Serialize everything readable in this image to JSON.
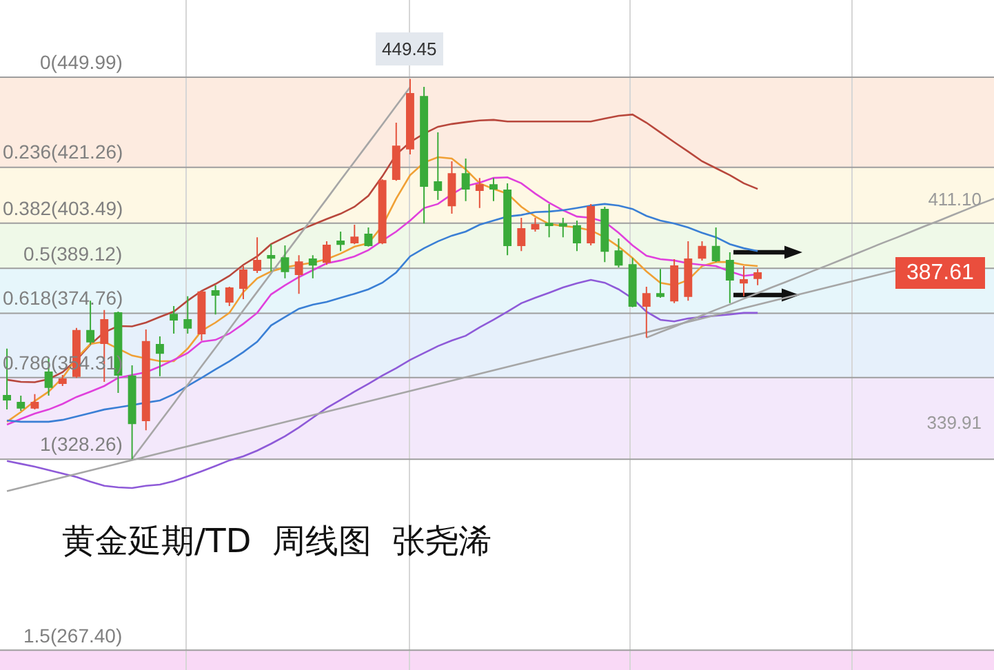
{
  "chart_data": {
    "type": "candlestick",
    "title": "黄金延期/TD  周线图  张尧浠",
    "categories": [
      null,
      null,
      null,
      null,
      null,
      null,
      null,
      null,
      null,
      null,
      null,
      null,
      null,
      null,
      null,
      null,
      null,
      null,
      null,
      null,
      null,
      null,
      null,
      null,
      null,
      null,
      null,
      null,
      null,
      null,
      null,
      null,
      null,
      null,
      null,
      null,
      null,
      null,
      null,
      null,
      null,
      null,
      null,
      null,
      null,
      null,
      null,
      null,
      null,
      null,
      null,
      null,
      null,
      null,
      null,
      null,
      null,
      null,
      null,
      null,
      null,
      null,
      null,
      null,
      null,
      null,
      null,
      null,
      null,
      null,
      null,
      null
    ],
    "ylim": [
      261.1,
      474.6
    ],
    "yticks": [
      {
        "value": 411.1,
        "label": "411.10"
      },
      339.91
    ],
    "tick_labels": "y",
    "grid": "x",
    "ohlc": [
      [
        348.5,
        363.5,
        344.1,
        347.2
      ],
      [
        346.3,
        348.5,
        343.7,
        344.6
      ],
      [
        344.6,
        349.0,
        344.1,
        346.3
      ],
      [
        356.0,
        360.4,
        348.5,
        351.2
      ],
      [
        352.5,
        355.1,
        351.6,
        353.8
      ],
      [
        354.7,
        370.1,
        354.2,
        369.2
      ],
      [
        369.2,
        378.8,
        364.8,
        365.7
      ],
      [
        365.2,
        375.8,
        352.9,
        372.7
      ],
      [
        374.9,
        375.3,
        349.4,
        355.1
      ],
      [
        354.7,
        358.2,
        328.26,
        339.7
      ],
      [
        340.6,
        369.6,
        337.5,
        365.7
      ],
      [
        364.8,
        367.4,
        354.7,
        362.1
      ],
      [
        374.4,
        377.1,
        368.3,
        372.7
      ],
      [
        372.7,
        380.2,
        368.3,
        370.1
      ],
      [
        368.3,
        381.9,
        366.1,
        381.5
      ],
      [
        381.9,
        383.7,
        374.4,
        380.6
      ],
      [
        378.4,
        383.2,
        377.1,
        382.8
      ],
      [
        382.8,
        389.8,
        379.3,
        388.5
      ],
      [
        388.5,
        399.0,
        387.6,
        391.6
      ],
      [
        393.1,
        396.8,
        388.1,
        392.4
      ],
      [
        392.4,
        396.4,
        385.9,
        388.1
      ],
      [
        387.2,
        393.3,
        381.0,
        391.1
      ],
      [
        392.0,
        393.3,
        385.9,
        390.2
      ],
      [
        391.1,
        397.7,
        390.2,
        396.4
      ],
      [
        397.7,
        400.8,
        394.6,
        396.8
      ],
      [
        397.3,
        403.0,
        396.8,
        399.0
      ],
      [
        399.9,
        402.1,
        396.0,
        396.4
      ],
      [
        397.3,
        417.5,
        396.8,
        417.0
      ],
      [
        417.5,
        435.5,
        417.0,
        428.0
      ],
      [
        427.2,
        449.45,
        425.4,
        444.7
      ],
      [
        443.8,
        446.9,
        403.4,
        415.3
      ],
      [
        416.6,
        432.4,
        410.9,
        414.0
      ],
      [
        409.1,
        423.2,
        406.5,
        419.2
      ],
      [
        419.2,
        424.1,
        410.5,
        414.4
      ],
      [
        414.0,
        417.9,
        408.3,
        415.7
      ],
      [
        415.7,
        417.9,
        410.5,
        414.4
      ],
      [
        414.0,
        416.2,
        393.3,
        396.4
      ],
      [
        396.4,
        405.2,
        394.6,
        401.7
      ],
      [
        401.7,
        405.2,
        400.8,
        403.0
      ],
      [
        403.4,
        409.6,
        399.0,
        402.8
      ],
      [
        403.2,
        405.2,
        399.0,
        402.6
      ],
      [
        402.6,
        404.3,
        394.6,
        397.3
      ],
      [
        397.3,
        409.6,
        396.4,
        408.7
      ],
      [
        407.8,
        408.7,
        391.1,
        394.6
      ],
      [
        394.6,
        398.6,
        389.4,
        390.2
      ],
      [
        390.2,
        392.4,
        376.7,
        377.1
      ],
      [
        377.1,
        383.2,
        367.0,
        381.0
      ],
      [
        381.0,
        388.9,
        379.7,
        380.2
      ],
      [
        378.8,
        392.0,
        378.0,
        389.8
      ],
      [
        380.2,
        397.7,
        378.8,
        392.0
      ],
      [
        392.4,
        397.7,
        391.6,
        396.0
      ],
      [
        396.0,
        402.1,
        391.1,
        391.6
      ],
      [
        391.6,
        394.2,
        378.0,
        385.4
      ],
      [
        384.5,
        389.8,
        380.2,
        385.4
      ],
      [
        385.9,
        388.9,
        383.7,
        387.61
      ],
      null,
      null,
      null,
      null,
      null,
      null,
      null,
      null,
      null,
      null,
      null,
      null,
      null,
      null,
      null,
      null,
      null
    ],
    "colors": [
      "#3aab3a",
      "#3aab3a",
      "#e5533d",
      "#3aab3a",
      "#e5533d",
      "#e5533d",
      "#3aab3a",
      "#e5533d",
      "#3aab3a",
      "#3aab3a",
      "#e5533d",
      "#3aab3a",
      "#3aab3a",
      "#3aab3a",
      "#e5533d",
      "#3aab3a",
      "#e5533d",
      "#e5533d",
      "#e5533d",
      "#3aab3a",
      "#3aab3a",
      "#e5533d",
      "#3aab3a",
      "#e5533d",
      "#3aab3a",
      "#e5533d",
      "#3aab3a",
      "#e5533d",
      "#e5533d",
      "#e5533d",
      "#3aab3a",
      "#3aab3a",
      "#e5533d",
      "#3aab3a",
      "#e5533d",
      "#3aab3a",
      "#3aab3a",
      "#e5533d",
      "#e5533d",
      "#3aab3a",
      "#3aab3a",
      "#3aab3a",
      "#e5533d",
      "#3aab3a",
      "#3aab3a",
      "#3aab3a",
      "#e5533d",
      "#3aab3a",
      "#e5533d",
      "#e5533d",
      "#e5533d",
      "#3aab3a",
      "#3aab3a",
      "#e5533d",
      "#e5533d",
      null,
      null,
      null,
      null,
      null,
      null,
      null,
      null,
      null,
      null,
      null,
      null,
      null,
      null,
      null,
      null,
      null
    ],
    "series": [
      {
        "type": "line",
        "color": "#b8473c",
        "values": [
          353.6,
          352.9,
          352.8,
          353.8,
          356.0,
          359.9,
          364.8,
          368.7,
          370.7,
          370.6,
          371.8,
          373.6,
          375.3,
          378.8,
          381.9,
          384.1,
          386.7,
          390.2,
          392.9,
          396.8,
          399.0,
          401.2,
          403.0,
          404.8,
          406.5,
          408.7,
          412.2,
          418.4,
          425.4,
          429.3,
          432.0,
          434.2,
          435.1,
          435.7,
          436.2,
          436.4,
          435.9,
          435.9,
          435.9,
          435.9,
          435.9,
          435.9,
          435.9,
          436.8,
          437.7,
          438.1,
          435.5,
          432.4,
          429.3,
          426.3,
          423.2,
          421.0,
          418.8,
          416.2,
          414.4,
          null,
          null,
          null,
          null,
          null,
          null,
          null,
          null,
          null,
          null,
          null,
          null,
          null,
          null,
          null,
          null,
          null
        ]
      },
      {
        "type": "line",
        "color": "#f0a035",
        "values": [
          340.2,
          343.3,
          346.8,
          349.8,
          354.2,
          360.4,
          365.0,
          365.7,
          363.5,
          361.3,
          360.4,
          359.5,
          359.5,
          363.5,
          369.2,
          371.8,
          374.9,
          381.5,
          385.9,
          388.1,
          389.4,
          390.2,
          390.9,
          392.0,
          393.8,
          396.0,
          397.1,
          402.6,
          411.3,
          418.8,
          422.8,
          424.5,
          424.1,
          420.6,
          416.2,
          414.4,
          412.9,
          408.7,
          405.6,
          403.2,
          402.6,
          402.1,
          401.2,
          399.0,
          396.0,
          392.4,
          388.1,
          384.5,
          383.7,
          385.4,
          389.8,
          391.1,
          391.1,
          390.2,
          389.8,
          null,
          null,
          null,
          null,
          null,
          null,
          null,
          null,
          null,
          null,
          null,
          null,
          null,
          null,
          null,
          null,
          null
        ]
      },
      {
        "type": "line",
        "color": "#e040dc",
        "values": [
          339.3,
          341.1,
          342.8,
          344.1,
          345.9,
          348.1,
          349.8,
          351.6,
          354.2,
          355.1,
          356.0,
          357.8,
          359.9,
          362.1,
          365.7,
          366.3,
          368.3,
          371.4,
          374.9,
          380.8,
          383.7,
          386.3,
          388.5,
          390.7,
          391.6,
          392.9,
          394.9,
          397.9,
          400.8,
          404.3,
          408.3,
          409.6,
          412.7,
          415.3,
          416.4,
          417.9,
          418.1,
          416.2,
          412.9,
          410.0,
          407.6,
          405.6,
          405.2,
          403.9,
          400.4,
          396.4,
          393.1,
          392.0,
          391.6,
          390.7,
          390.2,
          389.8,
          388.1,
          386.7,
          387.2,
          null,
          null,
          null,
          null,
          null,
          null,
          null,
          null,
          null,
          null,
          null,
          null,
          null,
          null,
          null,
          null,
          null
        ]
      },
      {
        "type": "line",
        "color": "#3a7fd5",
        "values": [
          340.6,
          340.2,
          340.2,
          340.2,
          340.8,
          341.9,
          343.0,
          344.1,
          344.8,
          345.5,
          346.3,
          347.0,
          349.0,
          351.6,
          354.2,
          356.9,
          359.5,
          362.4,
          365.7,
          370.9,
          373.6,
          376.2,
          377.5,
          378.4,
          379.7,
          381.0,
          382.4,
          384.5,
          387.8,
          392.9,
          395.5,
          397.7,
          399.5,
          400.8,
          403.0,
          404.3,
          405.6,
          406.1,
          407.0,
          407.2,
          407.6,
          408.3,
          409.1,
          409.6,
          409.1,
          408.0,
          405.8,
          404.3,
          403.4,
          402.1,
          400.4,
          399.0,
          396.8,
          395.5,
          394.6,
          null,
          null,
          null,
          null,
          null,
          null,
          null,
          null,
          null,
          null,
          null,
          null,
          null,
          null,
          null,
          null,
          null
        ]
      },
      {
        "type": "line",
        "color": "#8e5ad8",
        "values": [
          327.7,
          326.8,
          325.9,
          324.8,
          323.7,
          322.6,
          321.1,
          319.8,
          319.3,
          319.1,
          319.8,
          320.2,
          321.3,
          322.8,
          324.4,
          326.1,
          327.9,
          329.2,
          331.0,
          333.2,
          335.6,
          338.4,
          341.5,
          344.6,
          347.2,
          349.8,
          352.3,
          354.9,
          357.3,
          359.9,
          362.1,
          364.3,
          366.1,
          367.6,
          370.3,
          372.7,
          375.3,
          378.0,
          379.7,
          381.3,
          383.0,
          384.3,
          385.4,
          384.5,
          382.4,
          379.5,
          375.3,
          372.7,
          372.2,
          373.1,
          373.6,
          374.0,
          374.4,
          374.9,
          374.9,
          null,
          null,
          null,
          null,
          null,
          null,
          null,
          null,
          null,
          null,
          null,
          null,
          null,
          null,
          null,
          null,
          null
        ]
      },
      {
        "type": "line",
        "color": "#a6a6a6",
        "values": [
          null,
          null,
          null,
          null,
          null,
          null,
          null,
          null,
          null,
          328.3,
          334.2,
          340.1,
          346.0,
          352.0,
          357.9,
          363.8,
          369.7,
          375.7,
          381.6,
          387.5,
          393.5,
          399.4,
          405.3,
          411.2,
          417.2,
          423.1,
          429.0,
          434.9,
          440.9,
          446.8,
          null,
          null,
          null,
          null,
          null,
          null,
          null,
          null,
          null,
          null,
          null,
          null,
          null,
          null,
          null,
          null,
          null,
          null,
          null,
          null,
          null,
          null,
          null,
          null,
          null,
          null,
          null,
          null,
          null,
          null,
          null,
          null,
          null,
          null,
          null,
          null,
          null,
          null,
          null,
          null,
          null,
          null
        ]
      },
      {
        "type": "line",
        "color": "#a6a6a6",
        "values": [
          318.1,
          319.2,
          320.3,
          321.4,
          322.5,
          323.6,
          324.7,
          325.8,
          326.9,
          328.0,
          329.1,
          330.2,
          331.3,
          332.4,
          333.5,
          334.6,
          335.7,
          336.8,
          337.9,
          339.0,
          340.1,
          341.2,
          342.3,
          343.4,
          344.5,
          345.6,
          346.7,
          347.8,
          348.9,
          350.0,
          351.1,
          352.2,
          353.3,
          354.4,
          355.5,
          356.6,
          357.7,
          358.8,
          359.9,
          361.0,
          362.1,
          363.2,
          364.3,
          365.4,
          366.5,
          367.6,
          368.7,
          369.8,
          370.9,
          372.0,
          373.1,
          374.2,
          375.3,
          376.4,
          377.5,
          378.6,
          379.7,
          380.8,
          381.9,
          383.0,
          384.1,
          385.2,
          386.3,
          387.4,
          388.5,
          null,
          null,
          null,
          null,
          null,
          null,
          null
        ]
      },
      {
        "type": "line",
        "color": "#a6a6a6",
        "values": [
          null,
          null,
          null,
          null,
          null,
          null,
          null,
          null,
          null,
          null,
          null,
          null,
          null,
          null,
          null,
          null,
          null,
          null,
          null,
          null,
          null,
          null,
          null,
          null,
          null,
          null,
          null,
          null,
          null,
          null,
          null,
          null,
          null,
          null,
          null,
          null,
          null,
          null,
          null,
          null,
          null,
          null,
          null,
          null,
          null,
          null,
          367.0,
          368.8,
          370.5,
          372.3,
          374.1,
          375.9,
          377.6,
          379.4,
          381.2,
          383.0,
          384.7,
          386.5,
          388.3,
          390.0,
          391.8,
          393.6,
          395.4,
          397.2,
          398.9,
          400.7,
          402.5,
          404.2,
          406.0,
          407.8,
          409.6,
          411.3
        ]
      }
    ],
    "ref_lines": [
      {
        "axis": "y",
        "value": 449.99,
        "label": "0(449.99)"
      },
      {
        "axis": "y",
        "value": 421.26,
        "label": "0.236(421.26)"
      },
      {
        "axis": "y",
        "value": 403.49,
        "label": "0.382(403.49)"
      },
      {
        "axis": "y",
        "value": 389.12,
        "label": "0.5(389.12)"
      },
      {
        "axis": "y",
        "value": 374.76,
        "label": "0.618(374.76)"
      },
      {
        "axis": "y",
        "value": 354.31,
        "label": "0.786(354.31)"
      },
      {
        "axis": "y",
        "value": 328.26,
        "label": "1(328.26)"
      },
      {
        "axis": "y",
        "value": 267.4,
        "label": "1.5(267.40)"
      }
    ],
    "bands": [
      {
        "axis": "y",
        "from": 421.26,
        "to": 449.99,
        "color": "#fdebe0"
      },
      {
        "axis": "y",
        "from": 403.49,
        "to": 421.26,
        "color": "#fef8e4"
      },
      {
        "axis": "y",
        "from": 389.12,
        "to": 403.49,
        "color": "#eff9e8"
      },
      {
        "axis": "y",
        "from": 374.76,
        "to": 389.12,
        "color": "#e6f6fb"
      },
      {
        "axis": "y",
        "from": 354.31,
        "to": 374.76,
        "color": "#e6f0fb"
      },
      {
        "axis": "y",
        "from": 328.26,
        "to": 354.31,
        "color": "#f3e8fb"
      },
      {
        "axis": "y",
        "from": 261.1,
        "to": 267.4,
        "color": "#f9d9f6"
      }
    ],
    "annotations": [
      {
        "text": "449.45",
        "y": 449.45
      },
      {
        "text": "387.61",
        "y": 387.61
      }
    ]
  }
}
